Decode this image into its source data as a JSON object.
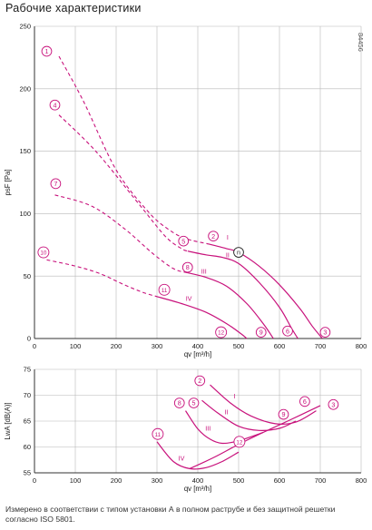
{
  "title": "Рабочие характеристики",
  "figure_id": "84456",
  "caption": "Измерено в соответствии с типом установки А в полном раструбе и без защитной решетки согласно ISO 5801.",
  "colors": {
    "curve": "#c8127c",
    "axis": "#333333",
    "grid": "#b8b8b8",
    "text": "#1a1a1a"
  },
  "chart_data": [
    {
      "type": "line",
      "name": "pressure",
      "xlabel": "qv [m³/h]",
      "ylabel": "psF [Pa]",
      "xlim": [
        0,
        800
      ],
      "ylim": [
        0,
        250
      ],
      "xticks": [
        0,
        100,
        200,
        300,
        400,
        500,
        600,
        700,
        800
      ],
      "yticks": [
        0,
        50,
        100,
        150,
        200,
        250
      ],
      "grid": true,
      "series": [
        {
          "label": "1",
          "style": "dashed",
          "points": [
            [
              60,
              226
            ],
            [
              120,
              190
            ],
            [
              200,
              135
            ],
            [
              280,
              101
            ],
            [
              330,
              87
            ],
            [
              370,
              80
            ],
            [
              422,
              76
            ]
          ]
        },
        {
          "label": "4",
          "style": "dashed",
          "points": [
            [
              60,
              179
            ],
            [
              150,
              150
            ],
            [
              250,
              110
            ],
            [
              320,
              82
            ],
            [
              360,
              72
            ],
            [
              375,
              70
            ]
          ]
        },
        {
          "label": "7",
          "style": "dashed",
          "points": [
            [
              50,
              115
            ],
            [
              140,
              106
            ],
            [
              220,
              88
            ],
            [
              290,
              68
            ],
            [
              340,
              56
            ],
            [
              370,
              53
            ]
          ]
        },
        {
          "label": "10",
          "style": "dashed",
          "points": [
            [
              30,
              63
            ],
            [
              100,
              58
            ],
            [
              160,
              52
            ],
            [
              220,
              43
            ],
            [
              265,
              37
            ],
            [
              295,
              34
            ]
          ]
        },
        {
          "label": "I",
          "style": "solid",
          "points": [
            [
              422,
              76
            ],
            [
              470,
              72
            ],
            [
              500,
              69
            ],
            [
              550,
              58
            ],
            [
              600,
              43
            ],
            [
              650,
              24
            ],
            [
              680,
              10
            ],
            [
              705,
              0
            ]
          ]
        },
        {
          "label": "II",
          "style": "solid",
          "points": [
            [
              375,
              70
            ],
            [
              420,
              67
            ],
            [
              460,
              65
            ],
            [
              500,
              60
            ],
            [
              550,
              45
            ],
            [
              600,
              25
            ],
            [
              630,
              8
            ],
            [
              645,
              0
            ]
          ]
        },
        {
          "label": "III",
          "style": "solid",
          "points": [
            [
              370,
              53
            ],
            [
              420,
              49
            ],
            [
              470,
              42
            ],
            [
              520,
              28
            ],
            [
              560,
              12
            ],
            [
              585,
              0
            ]
          ]
        },
        {
          "label": "IV",
          "style": "solid",
          "points": [
            [
              295,
              34
            ],
            [
              360,
              28
            ],
            [
              420,
              21
            ],
            [
              470,
              12
            ],
            [
              505,
              4
            ],
            [
              520,
              0
            ]
          ]
        }
      ],
      "annotations": [
        {
          "text": "1",
          "x": 30,
          "y": 230,
          "circled": true
        },
        {
          "text": "4",
          "x": 50,
          "y": 187,
          "circled": true
        },
        {
          "text": "7",
          "x": 52,
          "y": 124,
          "circled": true
        },
        {
          "text": "10",
          "x": 22,
          "y": 69,
          "circled": true
        },
        {
          "text": "2",
          "x": 438,
          "y": 82,
          "circled": true
        },
        {
          "text": "5",
          "x": 365,
          "y": 78,
          "circled": true
        },
        {
          "text": "8",
          "x": 375,
          "y": 57,
          "circled": true
        },
        {
          "text": "11",
          "x": 318,
          "y": 39,
          "circled": true
        },
        {
          "text": "3",
          "x": 712,
          "y": 5,
          "circled": true
        },
        {
          "text": "6",
          "x": 620,
          "y": 6,
          "circled": true
        },
        {
          "text": "9",
          "x": 555,
          "y": 5,
          "circled": true
        },
        {
          "text": "12",
          "x": 457,
          "y": 5,
          "circled": true
        },
        {
          "text": "n",
          "x": 500,
          "y": 69,
          "circled": true,
          "outline": true
        },
        {
          "text": "I",
          "x": 473,
          "y": 81,
          "circled": false
        },
        {
          "text": "II",
          "x": 473,
          "y": 67,
          "circled": false
        },
        {
          "text": "III",
          "x": 415,
          "y": 54,
          "circled": false
        },
        {
          "text": "IV",
          "x": 378,
          "y": 32,
          "circled": false
        }
      ]
    },
    {
      "type": "line",
      "name": "sound",
      "xlabel": "qv [m³/h]",
      "ylabel": "LwA [dB(A)]",
      "xlim": [
        0,
        800
      ],
      "ylim": [
        55,
        75
      ],
      "xticks": [
        0,
        100,
        200,
        300,
        400,
        500,
        600,
        700,
        800
      ],
      "yticks": [
        55,
        60,
        65,
        70,
        75
      ],
      "grid": true,
      "series": [
        {
          "label": "I",
          "style": "solid",
          "points": [
            [
              430,
              72
            ],
            [
              480,
              68.5
            ],
            [
              530,
              66
            ],
            [
              590,
              64.5
            ],
            [
              640,
              64.8
            ],
            [
              690,
              67
            ]
          ]
        },
        {
          "label": "II",
          "style": "solid",
          "points": [
            [
              410,
              69
            ],
            [
              450,
              66.5
            ],
            [
              500,
              64
            ],
            [
              550,
              63.2
            ],
            [
              600,
              63.6
            ],
            [
              640,
              65
            ]
          ]
        },
        {
          "label": "III",
          "style": "solid",
          "points": [
            [
              370,
              67
            ],
            [
              400,
              63.5
            ],
            [
              430,
              61.5
            ],
            [
              460,
              60.7
            ],
            [
              500,
              61.2
            ],
            [
              560,
              62.8
            ]
          ]
        },
        {
          "label": "IV",
          "style": "solid",
          "points": [
            [
              300,
              61
            ],
            [
              340,
              57.2
            ],
            [
              380,
              55.8
            ],
            [
              420,
              56
            ],
            [
              460,
              57.2
            ],
            [
              500,
              59
            ]
          ]
        },
        {
          "label": "envelope",
          "style": "solid",
          "points": [
            [
              380,
              55.8
            ],
            [
              440,
              58
            ],
            [
              500,
              60.5
            ],
            [
              560,
              62.8
            ],
            [
              620,
              65
            ],
            [
              700,
              68
            ]
          ]
        }
      ],
      "annotations": [
        {
          "text": "2",
          "x": 405,
          "y": 72.8,
          "circled": true
        },
        {
          "text": "5",
          "x": 390,
          "y": 68.5,
          "circled": true
        },
        {
          "text": "8",
          "x": 355,
          "y": 68.5,
          "circled": true
        },
        {
          "text": "11",
          "x": 302,
          "y": 62.5,
          "circled": true
        },
        {
          "text": "12",
          "x": 502,
          "y": 61,
          "circled": true
        },
        {
          "text": "9",
          "x": 610,
          "y": 66.3,
          "circled": true
        },
        {
          "text": "6",
          "x": 662,
          "y": 68.8,
          "circled": true
        },
        {
          "text": "3",
          "x": 732,
          "y": 68.2,
          "circled": true
        },
        {
          "text": "I",
          "x": 490,
          "y": 69.8,
          "circled": false
        },
        {
          "text": "II",
          "x": 470,
          "y": 66.8,
          "circled": false
        },
        {
          "text": "III",
          "x": 425,
          "y": 63.6,
          "circled": false
        },
        {
          "text": "IV",
          "x": 360,
          "y": 57.8,
          "circled": false
        }
      ]
    }
  ]
}
